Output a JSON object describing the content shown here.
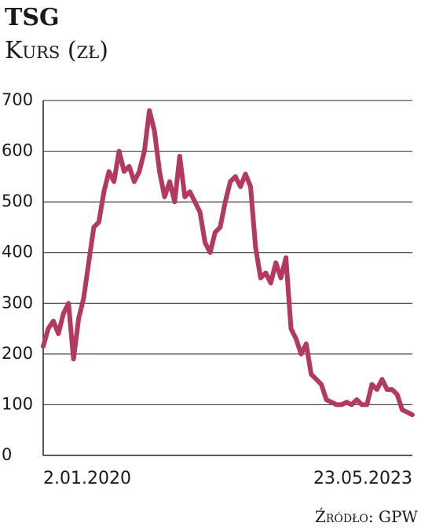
{
  "chart_data": {
    "type": "line",
    "title": "TSG",
    "subtitle": "Kurs (zł)",
    "source": "Źródło: GPW",
    "categories": [
      "2.01.2020",
      null,
      null,
      null,
      null,
      null,
      null,
      null,
      null,
      null,
      null,
      null,
      null,
      null,
      null,
      null,
      null,
      null,
      null,
      null,
      null,
      null,
      null,
      null,
      null,
      null,
      null,
      null,
      null,
      null,
      null,
      null,
      null,
      null,
      null,
      null,
      null,
      null,
      null,
      null,
      null,
      null,
      null,
      null,
      null,
      null,
      null,
      null,
      null,
      null,
      null,
      null,
      null,
      null,
      null,
      null,
      null,
      null,
      null,
      null,
      null,
      null,
      null,
      null,
      null,
      null,
      null,
      null,
      null,
      null,
      null,
      null,
      null,
      "23.05.2023"
    ],
    "values": [
      215,
      250,
      265,
      240,
      280,
      300,
      190,
      270,
      310,
      380,
      450,
      460,
      520,
      560,
      540,
      600,
      560,
      570,
      540,
      560,
      600,
      680,
      640,
      560,
      510,
      540,
      500,
      590,
      510,
      520,
      500,
      480,
      420,
      400,
      440,
      450,
      500,
      540,
      550,
      530,
      555,
      530,
      410,
      350,
      360,
      340,
      380,
      350,
      390,
      250,
      230,
      200,
      220,
      160,
      150,
      140,
      110,
      105,
      100,
      100,
      105,
      100,
      110,
      100,
      100,
      140,
      130,
      150,
      130,
      130,
      120,
      90,
      85,
      80
    ],
    "color": "#b3395f",
    "ylim": [
      0,
      700
    ],
    "yticks": [
      0,
      100,
      200,
      300,
      400,
      500,
      600,
      700
    ],
    "grid": true
  }
}
